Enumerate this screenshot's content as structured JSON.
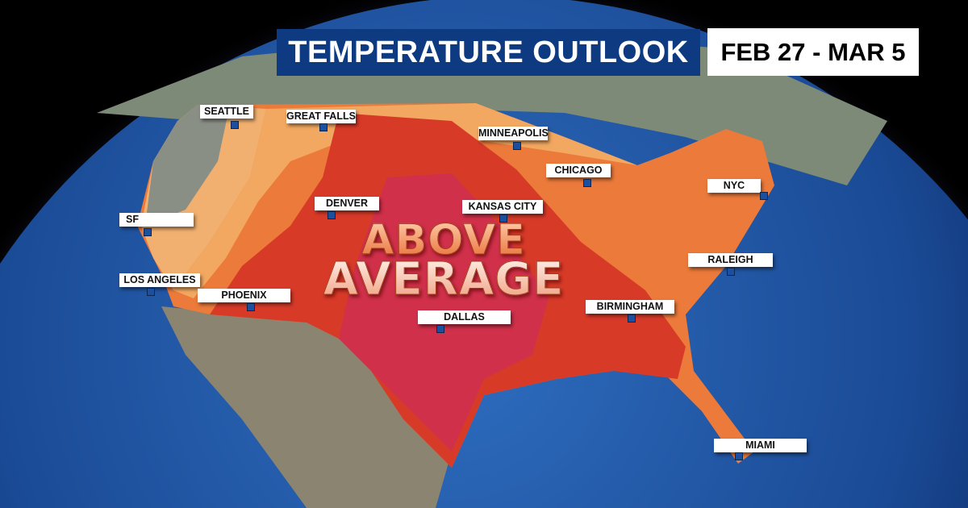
{
  "header": {
    "title": "TEMPERATURE OUTLOOK",
    "dates": "FEB 27 - MAR 5"
  },
  "overlay_text": {
    "line1": "ABOVE",
    "line2": "AVERAGE"
  },
  "cities": [
    {
      "name": "SEATTLE"
    },
    {
      "name": "GREAT FALLS"
    },
    {
      "name": "MINNEAPOLIS"
    },
    {
      "name": "CHICAGO"
    },
    {
      "name": "NYC"
    },
    {
      "name": "SF"
    },
    {
      "name": "DENVER"
    },
    {
      "name": "KANSAS CITY"
    },
    {
      "name": "LOS ANGELES"
    },
    {
      "name": "PHOENIX"
    },
    {
      "name": "RALEIGH"
    },
    {
      "name": "DALLAS"
    },
    {
      "name": "BIRMINGHAM"
    },
    {
      "name": "MIAMI"
    }
  ],
  "colors": {
    "title_bg": "#0d3a80",
    "ocean": "#1d4f9a",
    "slight_above": "#f2a860",
    "above": "#ec7a3a",
    "well_above": "#d83a28",
    "much_above": "#d0304a"
  }
}
